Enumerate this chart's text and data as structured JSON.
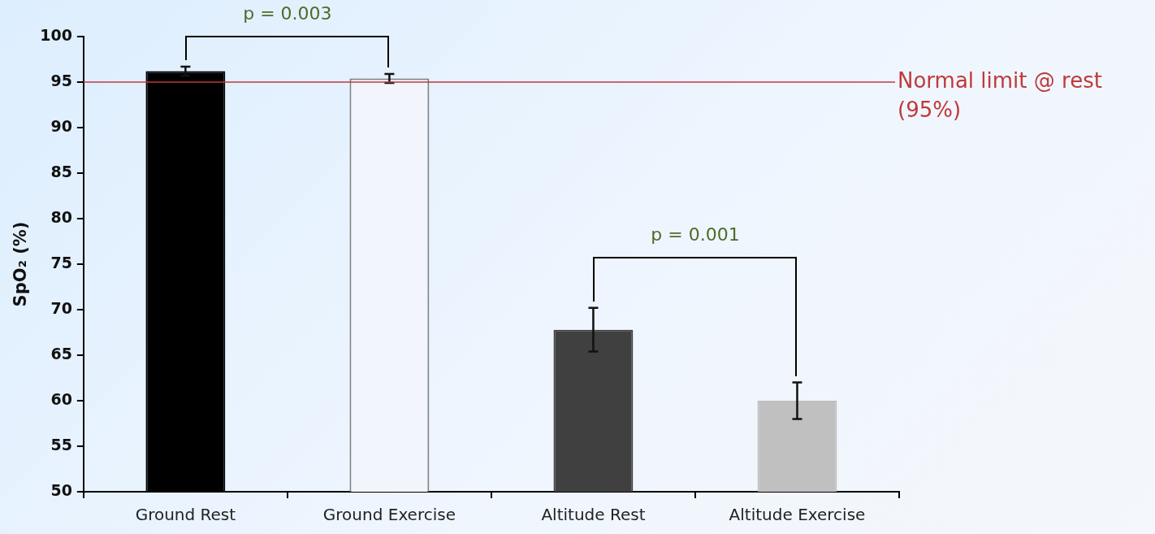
{
  "chart_data": {
    "type": "bar",
    "ylabel": "SpO₂ (%)",
    "categories": [
      "Ground Rest",
      "Ground Exercise",
      "Altitude Rest",
      "Altitude Exercise"
    ],
    "values": [
      96.2,
      95.4,
      67.8,
      60.0
    ],
    "colors": [
      "#000000",
      "#f2f6fc",
      "#404040",
      "#c0c0c0"
    ],
    "errors": [
      0.5,
      0.5,
      2.4,
      2.0
    ],
    "ylim": [
      50,
      100
    ],
    "yticks": [
      50,
      55,
      60,
      65,
      70,
      75,
      80,
      85,
      90,
      95,
      100
    ],
    "grid": false,
    "legend": false,
    "ref_lines": [
      {
        "axis": "y",
        "value": 95,
        "label": "Normal limit @ rest (95%)",
        "color": "#c0393b"
      }
    ],
    "annotations": [
      "p = 0.003",
      "p = 0.001"
    ]
  }
}
